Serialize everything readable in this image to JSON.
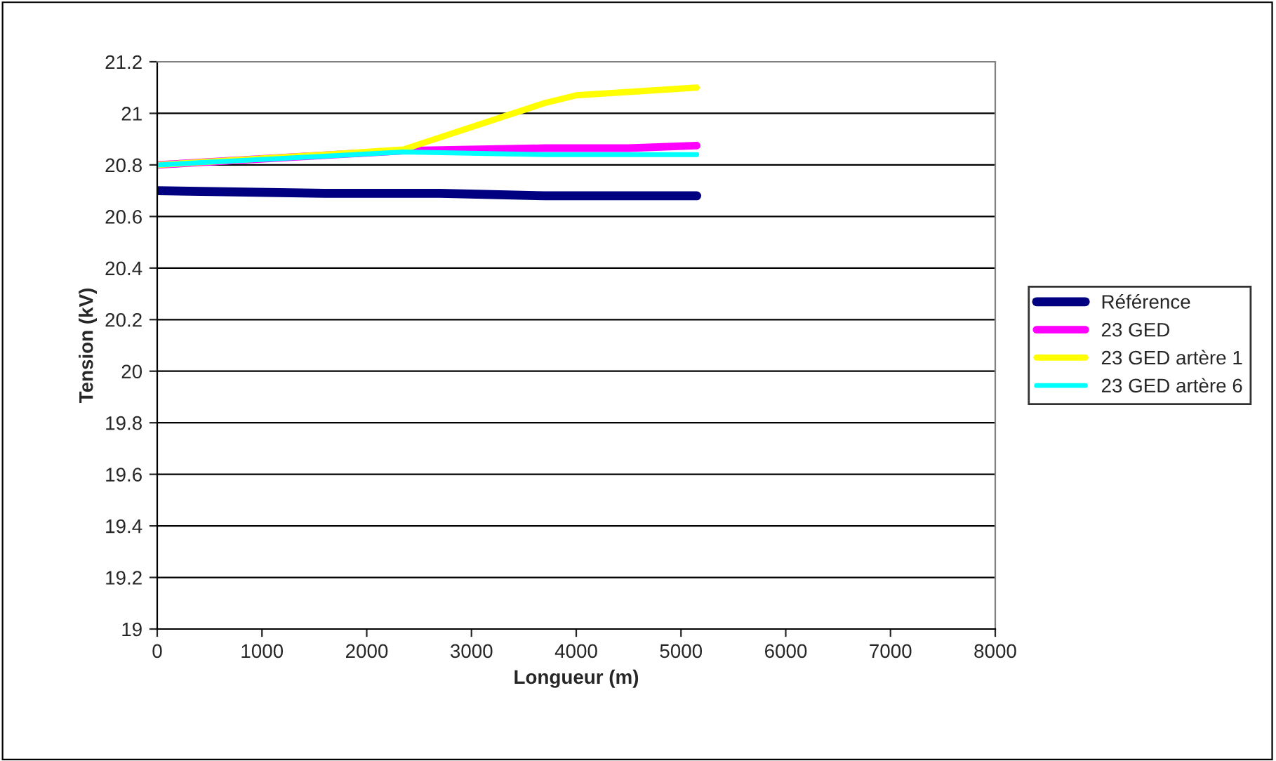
{
  "chart_data": {
    "type": "line",
    "xlabel": "Longueur (m)",
    "ylabel": "Tension (kV)",
    "xlim": [
      0,
      8000
    ],
    "xticks": [
      0,
      1000,
      2000,
      3000,
      4000,
      5000,
      6000,
      7000,
      8000
    ],
    "ylim": [
      19,
      21.2
    ],
    "yticks": [
      19,
      19.2,
      19.4,
      19.6,
      19.8,
      20,
      20.2,
      20.4,
      20.6,
      20.8,
      21,
      21.2
    ],
    "grid": "y",
    "legend": "right",
    "marker": "none",
    "line_style": "solid",
    "series": [
      {
        "name": "Référence",
        "color": "#000080",
        "x": [
          0,
          1600,
          2700,
          3700,
          5150
        ],
        "values": [
          20.7,
          20.69,
          20.69,
          20.68,
          20.68
        ]
      },
      {
        "name": "23 GED",
        "color": "#ff00ff",
        "x": [
          0,
          2350,
          3700,
          4500,
          5150
        ],
        "values": [
          20.8,
          20.855,
          20.865,
          20.865,
          20.875
        ]
      },
      {
        "name": "23 GED artère 1",
        "color": "#ffff00",
        "x": [
          0,
          1600,
          2350,
          3700,
          4000,
          5150
        ],
        "values": [
          20.8,
          20.84,
          20.86,
          21.04,
          21.07,
          21.1
        ]
      },
      {
        "name": "23 GED artère 6",
        "color": "#00ffff",
        "x": [
          0,
          2350,
          3700,
          5150
        ],
        "values": [
          20.8,
          20.85,
          20.84,
          20.84
        ]
      }
    ]
  }
}
